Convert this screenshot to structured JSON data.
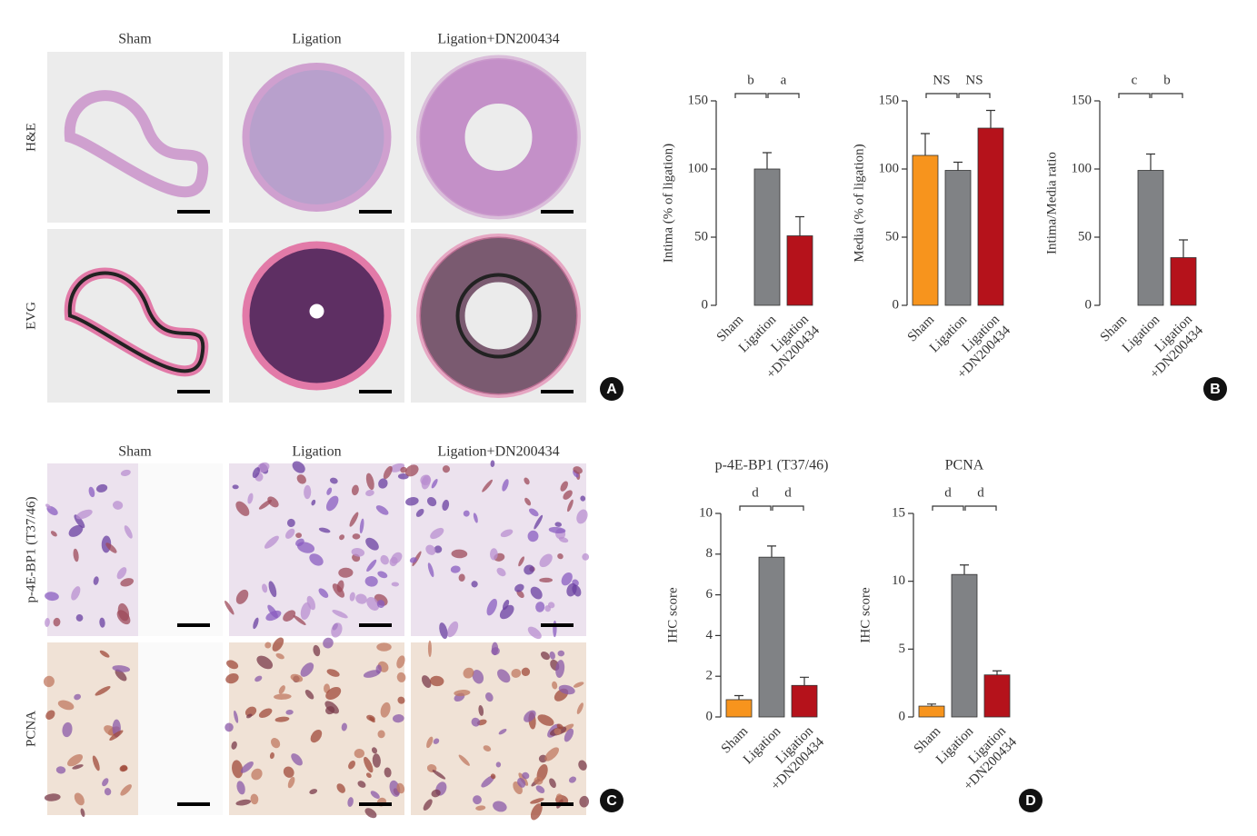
{
  "chart_data": [
    {
      "type": "bar",
      "ylabel": "Intima (% of ligation)",
      "categories": [
        "Sham",
        "Ligation",
        "Ligation +DN200434"
      ],
      "values": [
        0,
        100,
        51
      ],
      "errors": [
        null,
        12,
        14
      ],
      "colors": [
        "#f7941d",
        "#808285",
        "#b5121b"
      ],
      "ylim": [
        0,
        150
      ],
      "yticks": [
        0,
        50,
        100,
        150
      ],
      "annotations": [
        "b",
        "a"
      ]
    },
    {
      "type": "bar",
      "ylabel": "Media (% of ligation)",
      "categories": [
        "Sham",
        "Ligation",
        "Ligation +DN200434"
      ],
      "values": [
        110,
        99,
        130
      ],
      "errors": [
        16,
        6,
        13
      ],
      "colors": [
        "#f7941d",
        "#808285",
        "#b5121b"
      ],
      "ylim": [
        0,
        150
      ],
      "yticks": [
        0,
        50,
        100,
        150
      ],
      "annotations": [
        "NS",
        "NS"
      ]
    },
    {
      "type": "bar",
      "ylabel": "Intima/Media ratio",
      "categories": [
        "Sham",
        "Ligation",
        "Ligation +DN200434"
      ],
      "values": [
        0,
        99,
        35
      ],
      "errors": [
        null,
        12,
        13
      ],
      "colors": [
        "#f7941d",
        "#808285",
        "#b5121b"
      ],
      "ylim": [
        0,
        150
      ],
      "yticks": [
        0,
        50,
        100,
        150
      ],
      "annotations": [
        "c",
        "b"
      ]
    },
    {
      "type": "bar",
      "title": "p-4E-BP1 (T37/46)",
      "ylabel": "IHC score",
      "categories": [
        "Sham",
        "Ligation",
        "Ligation +DN200434"
      ],
      "values": [
        0.85,
        7.85,
        1.55
      ],
      "errors": [
        0.2,
        0.55,
        0.4
      ],
      "colors": [
        "#f7941d",
        "#808285",
        "#b5121b"
      ],
      "ylim": [
        0,
        10
      ],
      "yticks": [
        0,
        2,
        4,
        6,
        8,
        10
      ],
      "annotations": [
        "d",
        "d"
      ]
    },
    {
      "type": "bar",
      "title": "PCNA",
      "ylabel": "IHC score",
      "categories": [
        "Sham",
        "Ligation",
        "Ligation +DN200434"
      ],
      "values": [
        0.8,
        10.5,
        3.1
      ],
      "errors": [
        0.15,
        0.7,
        0.3
      ],
      "colors": [
        "#f7941d",
        "#808285",
        "#b5121b"
      ],
      "ylim": [
        0,
        15
      ],
      "yticks": [
        0,
        5,
        10,
        15
      ],
      "annotations": [
        "d",
        "d"
      ]
    }
  ],
  "panel_a": {
    "columns": [
      "Sham",
      "Ligation",
      "Ligation+DN200434"
    ],
    "rows": [
      "H&E",
      "EVG"
    ],
    "letter": "A"
  },
  "panel_b": {
    "letter": "B"
  },
  "panel_c": {
    "columns": [
      "Sham",
      "Ligation",
      "Ligation+DN200434"
    ],
    "rows": [
      "p-4E-BP1 (T37/46)",
      "PCNA"
    ],
    "letter": "C"
  },
  "panel_d": {
    "letter": "D"
  }
}
